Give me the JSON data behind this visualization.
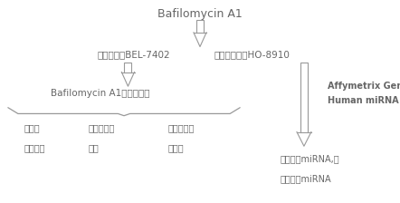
{
  "bg_color": "#ffffff",
  "title": "Bafilomycin A1",
  "cell_line_left": "肝癌细胞系BEL-7402",
  "cell_line_right": "卵巢癌细胞系HO-8910",
  "inhibition_text": "Bafilomycin A1的抑癌效果",
  "affymetrix_text1": "Affymetrix GeneChip",
  "affymetrix_text2": "Human miRNA Array",
  "bottom_left1_line1": "单克隆",
  "bottom_left1_line2": "形成实验",
  "bottom_left2_line1": "凋亡形态学",
  "bottom_left2_line2": "检查",
  "bottom_left3_line1": "体外细胞侵",
  "bottom_left3_line2": "袭实验",
  "bottom_right_line1": "分析差异miRNA,得",
  "bottom_right_line2": "到共敏感miRNA",
  "font_color": "#666666",
  "arrow_color": "#999999",
  "brace_color": "#999999"
}
